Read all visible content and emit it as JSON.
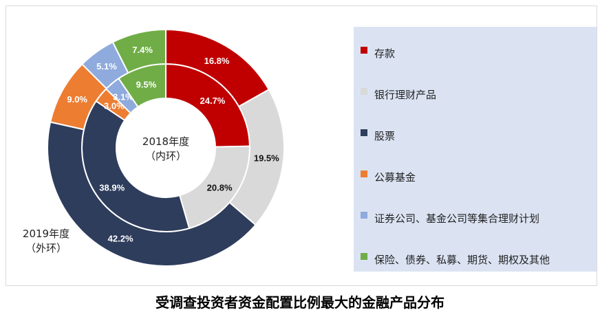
{
  "chart_data": {
    "type": "donut",
    "title": "受调查投资者资金配置比例最大的金融产品分布",
    "categories": [
      "存款",
      "银行理财产品",
      "股票",
      "公募基金",
      "证券公司、基金公司等集合理财计划",
      "保险、债券、私募、期货、期权及其他"
    ],
    "colors": [
      "#c00000",
      "#d9d9d9",
      "#2e3d5c",
      "#ed7d31",
      "#8faadc",
      "#70ad47"
    ],
    "series": [
      {
        "name": "2018年度（内环）",
        "values": [
          24.7,
          20.8,
          38.9,
          3.0,
          3.1,
          9.5
        ],
        "labels": [
          "24.7%",
          "20.8%",
          "38.9%",
          "3.0%",
          "3.1%",
          "9.5%"
        ]
      },
      {
        "name": "2019年度（外环）",
        "values": [
          16.8,
          19.5,
          42.2,
          9.0,
          5.1,
          7.4
        ],
        "labels": [
          "16.8%",
          "19.5%",
          "42.2%",
          "9.0%",
          "5.1%",
          "7.4%"
        ]
      }
    ],
    "inner_label": [
      "2018年度",
      "（内环）"
    ],
    "outer_label": [
      "2019年度",
      "（外环）"
    ],
    "legend_position": "right"
  }
}
